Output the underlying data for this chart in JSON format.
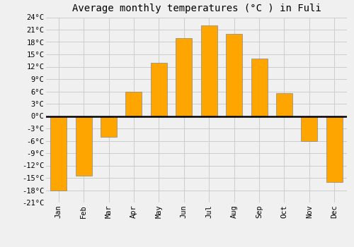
{
  "title": "Average monthly temperatures (°C ) in Fuli",
  "months": [
    "Jan",
    "Feb",
    "Mar",
    "Apr",
    "May",
    "Jun",
    "Jul",
    "Aug",
    "Sep",
    "Oct",
    "Nov",
    "Dec"
  ],
  "values": [
    -18,
    -14.5,
    -5,
    6,
    13,
    19,
    22,
    20,
    14,
    5.5,
    -6,
    -16
  ],
  "bar_color": "#FFA500",
  "bar_edge_color": "#888888",
  "ylim": [
    -21,
    24
  ],
  "yticks": [
    -21,
    -18,
    -15,
    -12,
    -9,
    -6,
    -3,
    0,
    3,
    6,
    9,
    12,
    15,
    18,
    21,
    24
  ],
  "ytick_labels": [
    "-21°C",
    "-18°C",
    "-15°C",
    "-12°C",
    "-9°C",
    "-6°C",
    "-3°C",
    "0°C",
    "3°C",
    "6°C",
    "9°C",
    "12°C",
    "15°C",
    "18°C",
    "21°C",
    "24°C"
  ],
  "background_color": "#f0f0f0",
  "grid_color": "#cccccc",
  "title_fontsize": 10,
  "tick_fontsize": 7.5,
  "bar_width": 0.65
}
